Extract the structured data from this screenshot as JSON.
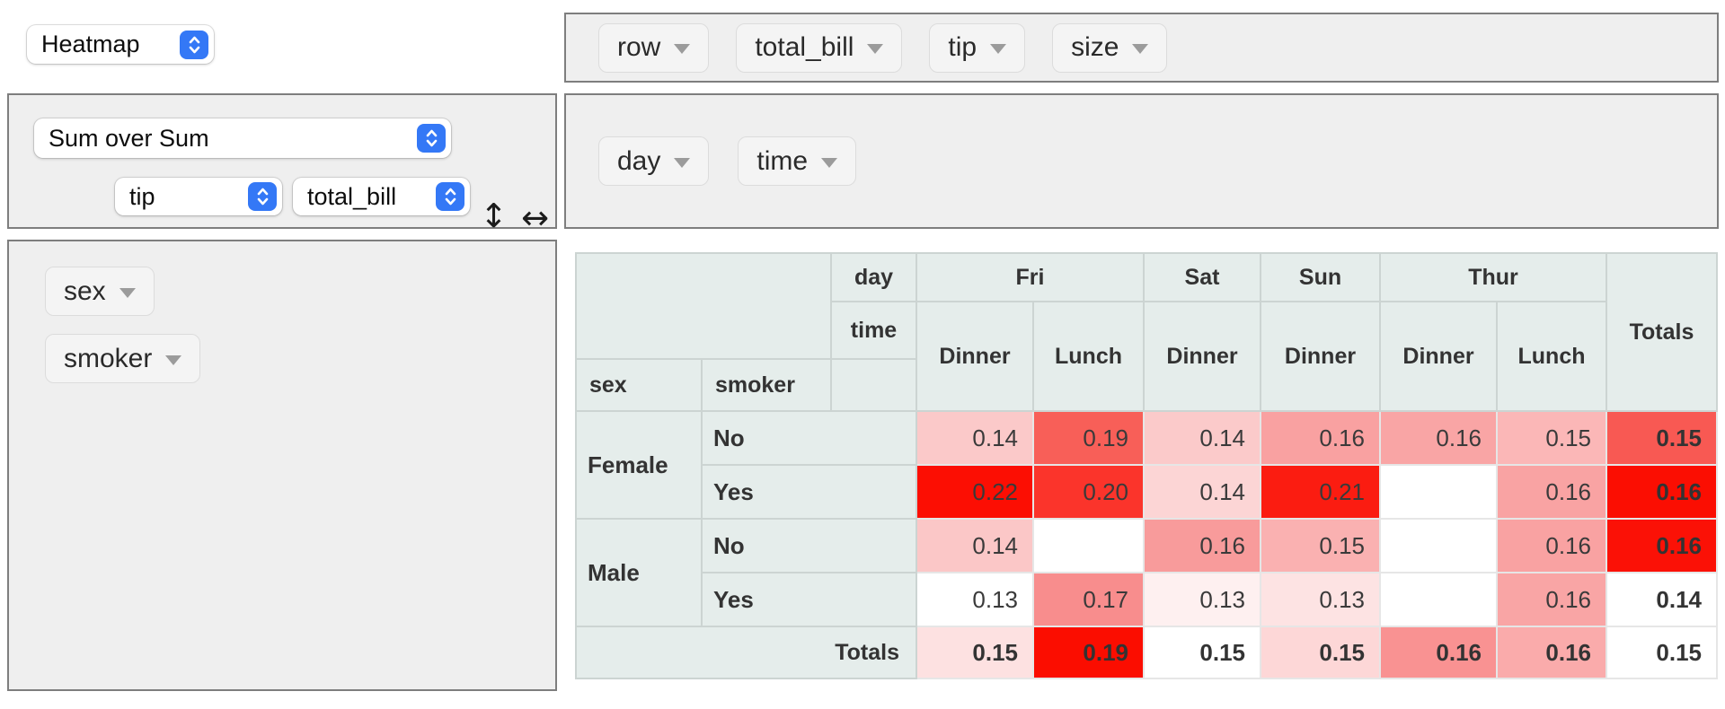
{
  "renderer_select": {
    "value": "Heatmap"
  },
  "aggregator": {
    "select_value": "Sum over Sum",
    "arg_selects": [
      "tip",
      "total_bill"
    ],
    "row_order_arrow": "↕",
    "col_order_arrow": "↔"
  },
  "unused_attrs": [
    "row",
    "total_bill",
    "tip",
    "size"
  ],
  "col_attrs": [
    "day",
    "time"
  ],
  "row_attrs": [
    "sex",
    "smoker"
  ],
  "colors": {
    "accent_blue": "#3478f6",
    "header_bg": "#e5edeb",
    "zone_bg": "#efefef",
    "zone_border": "#7e7e7e",
    "heat_max_red": "#fb0e03"
  },
  "table": {
    "axis": {
      "col1": "day",
      "col2": "time",
      "row1": "sex",
      "row2": "smoker"
    },
    "totals_label": "Totals",
    "col_groups": [
      {
        "label": "Fri",
        "span": 2
      },
      {
        "label": "Sat",
        "span": 1
      },
      {
        "label": "Sun",
        "span": 1
      },
      {
        "label": "Thur",
        "span": 2
      }
    ],
    "col_leaves": [
      "Dinner",
      "Lunch",
      "Dinner",
      "Dinner",
      "Dinner",
      "Lunch"
    ],
    "rows": [
      {
        "group": "Female",
        "label": "No",
        "cells": [
          {
            "v": "0.14",
            "bg": "#fbc9c9"
          },
          {
            "v": "0.19",
            "bg": "#f85f58"
          },
          {
            "v": "0.14",
            "bg": "#fbcaca"
          },
          {
            "v": "0.16",
            "bg": "#f9a1a1"
          },
          {
            "v": "0.16",
            "bg": "#f9a5a5"
          },
          {
            "v": "0.15",
            "bg": "#fbb7b7"
          }
        ],
        "total": {
          "v": "0.15",
          "bg": "#f85953"
        }
      },
      {
        "group": null,
        "label": "Yes",
        "cells": [
          {
            "v": "0.22",
            "bg": "#fc0e03"
          },
          {
            "v": "0.20",
            "bg": "#fb342b"
          },
          {
            "v": "0.14",
            "bg": "#fcd5d5"
          },
          {
            "v": "0.21",
            "bg": "#fb1c11"
          },
          {
            "v": "",
            "bg": "#ffffff"
          },
          {
            "v": "0.16",
            "bg": "#f9a3a3"
          }
        ],
        "total": {
          "v": "0.16",
          "bg": "#fb0e02"
        }
      },
      {
        "group": "Male",
        "label": "No",
        "cells": [
          {
            "v": "0.14",
            "bg": "#fbc7c7"
          },
          {
            "v": "",
            "bg": "#ffffff"
          },
          {
            "v": "0.16",
            "bg": "#f89b9b"
          },
          {
            "v": "0.15",
            "bg": "#fab1b1"
          },
          {
            "v": "",
            "bg": "#ffffff"
          },
          {
            "v": "0.16",
            "bg": "#f9a2a2"
          }
        ],
        "total": {
          "v": "0.16",
          "bg": "#fb1106"
        }
      },
      {
        "group": null,
        "label": "Yes",
        "cells": [
          {
            "v": "0.13",
            "bg": "#ffffff"
          },
          {
            "v": "0.17",
            "bg": "#f88d8d"
          },
          {
            "v": "0.13",
            "bg": "#fef0f0"
          },
          {
            "v": "0.13",
            "bg": "#fde3e3"
          },
          {
            "v": "",
            "bg": "#ffffff"
          },
          {
            "v": "0.16",
            "bg": "#f9a5a5"
          }
        ],
        "total": {
          "v": "0.14",
          "bg": "#ffffff"
        }
      }
    ],
    "totals_row": {
      "label": "Totals",
      "cells": [
        {
          "v": "0.15",
          "bg": "#fde1e1"
        },
        {
          "v": "0.19",
          "bg": "#fb0d00"
        },
        {
          "v": "0.15",
          "bg": "#ffffff"
        },
        {
          "v": "0.15",
          "bg": "#fdd7d7"
        },
        {
          "v": "0.16",
          "bg": "#f99292"
        },
        {
          "v": "0.16",
          "bg": "#faabab"
        }
      ],
      "total": {
        "v": "0.15",
        "bg": "#ffffff"
      }
    }
  }
}
